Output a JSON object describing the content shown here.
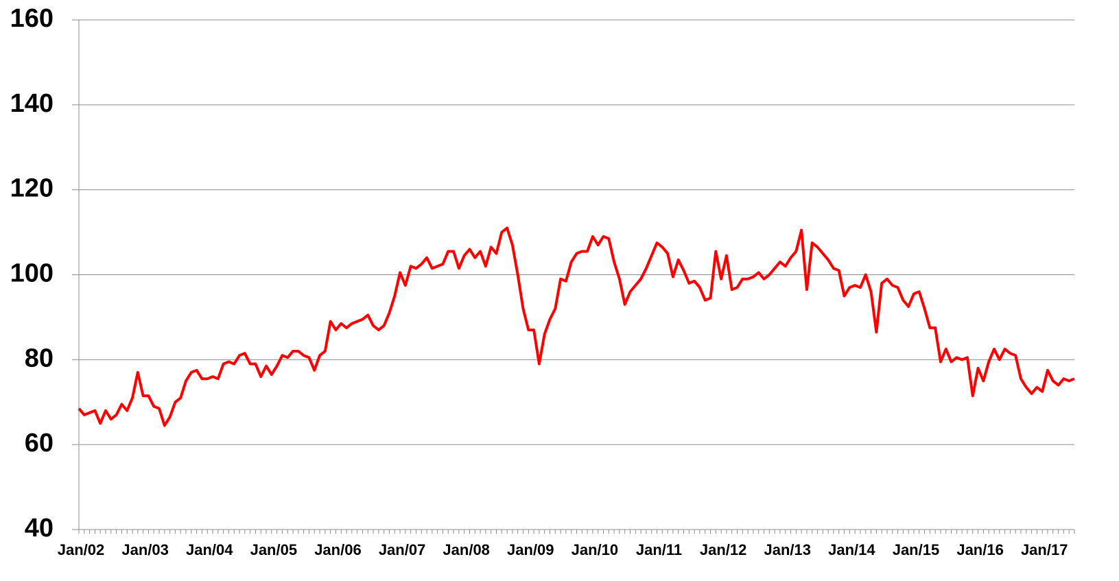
{
  "chart_data": {
    "type": "line",
    "categories": [
      "Jan/02",
      null,
      null,
      null,
      null,
      null,
      null,
      null,
      null,
      null,
      null,
      null,
      "Jan/03",
      null,
      null,
      null,
      null,
      null,
      null,
      null,
      null,
      null,
      null,
      null,
      "Jan/04",
      null,
      null,
      null,
      null,
      null,
      null,
      null,
      null,
      null,
      null,
      null,
      "Jan/05",
      null,
      null,
      null,
      null,
      null,
      null,
      null,
      null,
      null,
      null,
      null,
      "Jan/06",
      null,
      null,
      null,
      null,
      null,
      null,
      null,
      null,
      null,
      null,
      null,
      "Jan/07",
      null,
      null,
      null,
      null,
      null,
      null,
      null,
      null,
      null,
      null,
      null,
      "Jan/08",
      null,
      null,
      null,
      null,
      null,
      null,
      null,
      null,
      null,
      null,
      null,
      "Jan/09",
      null,
      null,
      null,
      null,
      null,
      null,
      null,
      null,
      null,
      null,
      null,
      "Jan/10",
      null,
      null,
      null,
      null,
      null,
      null,
      null,
      null,
      null,
      null,
      null,
      "Jan/11",
      null,
      null,
      null,
      null,
      null,
      null,
      null,
      null,
      null,
      null,
      null,
      "Jan/12",
      null,
      null,
      null,
      null,
      null,
      null,
      null,
      null,
      null,
      null,
      null,
      "Jan/13",
      null,
      null,
      null,
      null,
      null,
      null,
      null,
      null,
      null,
      null,
      null,
      "Jan/14",
      null,
      null,
      null,
      null,
      null,
      null,
      null,
      null,
      null,
      null,
      null,
      "Jan/15",
      null,
      null,
      null,
      null,
      null,
      null,
      null,
      null,
      null,
      null,
      null,
      "Jan/16",
      null,
      null,
      null,
      null,
      null,
      null,
      null,
      null,
      null,
      null,
      null,
      "Jan/17",
      null,
      null,
      null,
      null,
      null,
      null
    ],
    "series": [
      {
        "color": "#ff0000",
        "values": [
          68.5,
          67,
          67.5,
          68,
          65,
          68,
          66,
          67,
          69.5,
          68,
          71,
          77,
          71.5,
          71.5,
          69,
          68.5,
          64.5,
          66.5,
          70,
          71,
          75,
          77,
          77.5,
          75.5,
          75.5,
          76,
          75.5,
          79,
          79.5,
          79,
          81,
          81.5,
          79,
          79,
          76,
          78.5,
          76.5,
          78.5,
          81,
          80.5,
          82,
          82,
          81,
          80.5,
          77.5,
          81,
          82,
          89,
          87,
          88.5,
          87.5,
          88.5,
          89,
          89.5,
          90.5,
          88,
          87,
          88,
          91,
          95,
          100.5,
          97.5,
          102,
          101.5,
          102.5,
          104,
          101.5,
          102,
          102.5,
          105.5,
          105.5,
          101.5,
          104.5,
          106,
          104,
          105.5,
          102,
          106.5,
          105,
          110,
          111,
          107,
          100,
          92,
          87,
          87,
          79,
          86,
          89.5,
          92,
          99,
          98.5,
          103,
          105,
          105.5,
          105.5,
          109,
          107,
          109,
          108.5,
          103,
          99,
          93,
          96,
          97.5,
          99,
          101.5,
          104.5,
          107.5,
          106.5,
          105,
          99.5,
          103.5,
          101,
          98,
          98.5,
          97,
          94,
          94.5,
          105.5,
          99,
          104.5,
          96.5,
          97,
          99,
          99,
          99.5,
          100.5,
          99,
          100,
          101.5,
          103,
          102,
          104,
          105.5,
          110.5,
          96.5,
          107.5,
          106.5,
          105,
          103.5,
          101.5,
          101,
          95,
          97,
          97.5,
          97,
          100,
          96,
          86.5,
          98,
          99,
          97.5,
          97,
          94,
          92.5,
          95.5,
          96,
          92,
          87.5,
          87.5,
          79.5,
          82.5,
          79.5,
          80.5,
          80,
          80.5,
          71.5,
          78,
          75,
          79.5,
          82.5,
          80,
          82.5,
          81.5,
          81,
          75.5,
          73.5,
          72,
          73.5,
          72.5,
          77.5,
          75,
          74,
          75.5,
          75,
          75.5
        ]
      }
    ],
    "ylim": [
      40,
      160
    ],
    "yticks": [
      40,
      60,
      80,
      100,
      120,
      140,
      160
    ],
    "grid": true
  }
}
